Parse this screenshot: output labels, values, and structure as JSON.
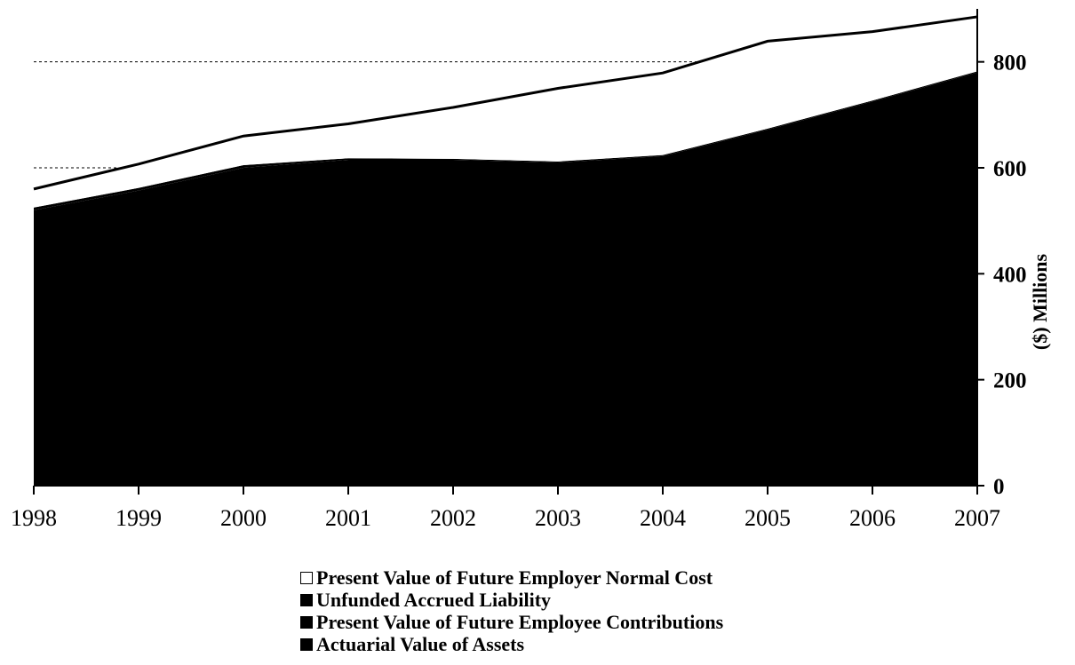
{
  "chart_data": {
    "type": "area",
    "stacked": true,
    "x": [
      1998,
      1999,
      2000,
      2001,
      2002,
      2003,
      2004,
      2005,
      2006,
      2007
    ],
    "series": [
      {
        "name": "Actuarial Value of Assets",
        "color": "#000000",
        "values": [
          520,
          557,
          600,
          615,
          615,
          610,
          622,
          672,
          725,
          780
        ]
      },
      {
        "name": "Present Value of Future Employee Contributions",
        "color": "#000000",
        "values": [
          5,
          5,
          5,
          3,
          2,
          2,
          2,
          2,
          2,
          2
        ]
      },
      {
        "name": "Unfunded Accrued Liability",
        "color": "#000000",
        "values": [
          0,
          0,
          0,
          0,
          0,
          0,
          0,
          0,
          0,
          0
        ]
      },
      {
        "name": "Present Value of Future Employer Normal Cost",
        "color": "#ffffff",
        "values": [
          35,
          45,
          55,
          65,
          97,
          138,
          155,
          165,
          130,
          103
        ]
      }
    ],
    "xlabel": "",
    "ylabel": "($) Millions",
    "ylim": [
      0,
      900
    ],
    "yticks": [
      0,
      200,
      400,
      600,
      800
    ],
    "y_axis_side": "right",
    "grid": "dotted lines at 600 and 800",
    "legend_position": "bottom"
  },
  "legend": {
    "items": [
      {
        "label": "Present Value of Future Employer Normal Cost",
        "swatch": "#ffffff"
      },
      {
        "label": "Unfunded Accrued Liability",
        "swatch": "#000000"
      },
      {
        "label": "Present Value of Future Employee Contributions",
        "swatch": "#000000"
      },
      {
        "label": "Actuarial Value of Assets",
        "swatch": "#000000"
      }
    ]
  }
}
